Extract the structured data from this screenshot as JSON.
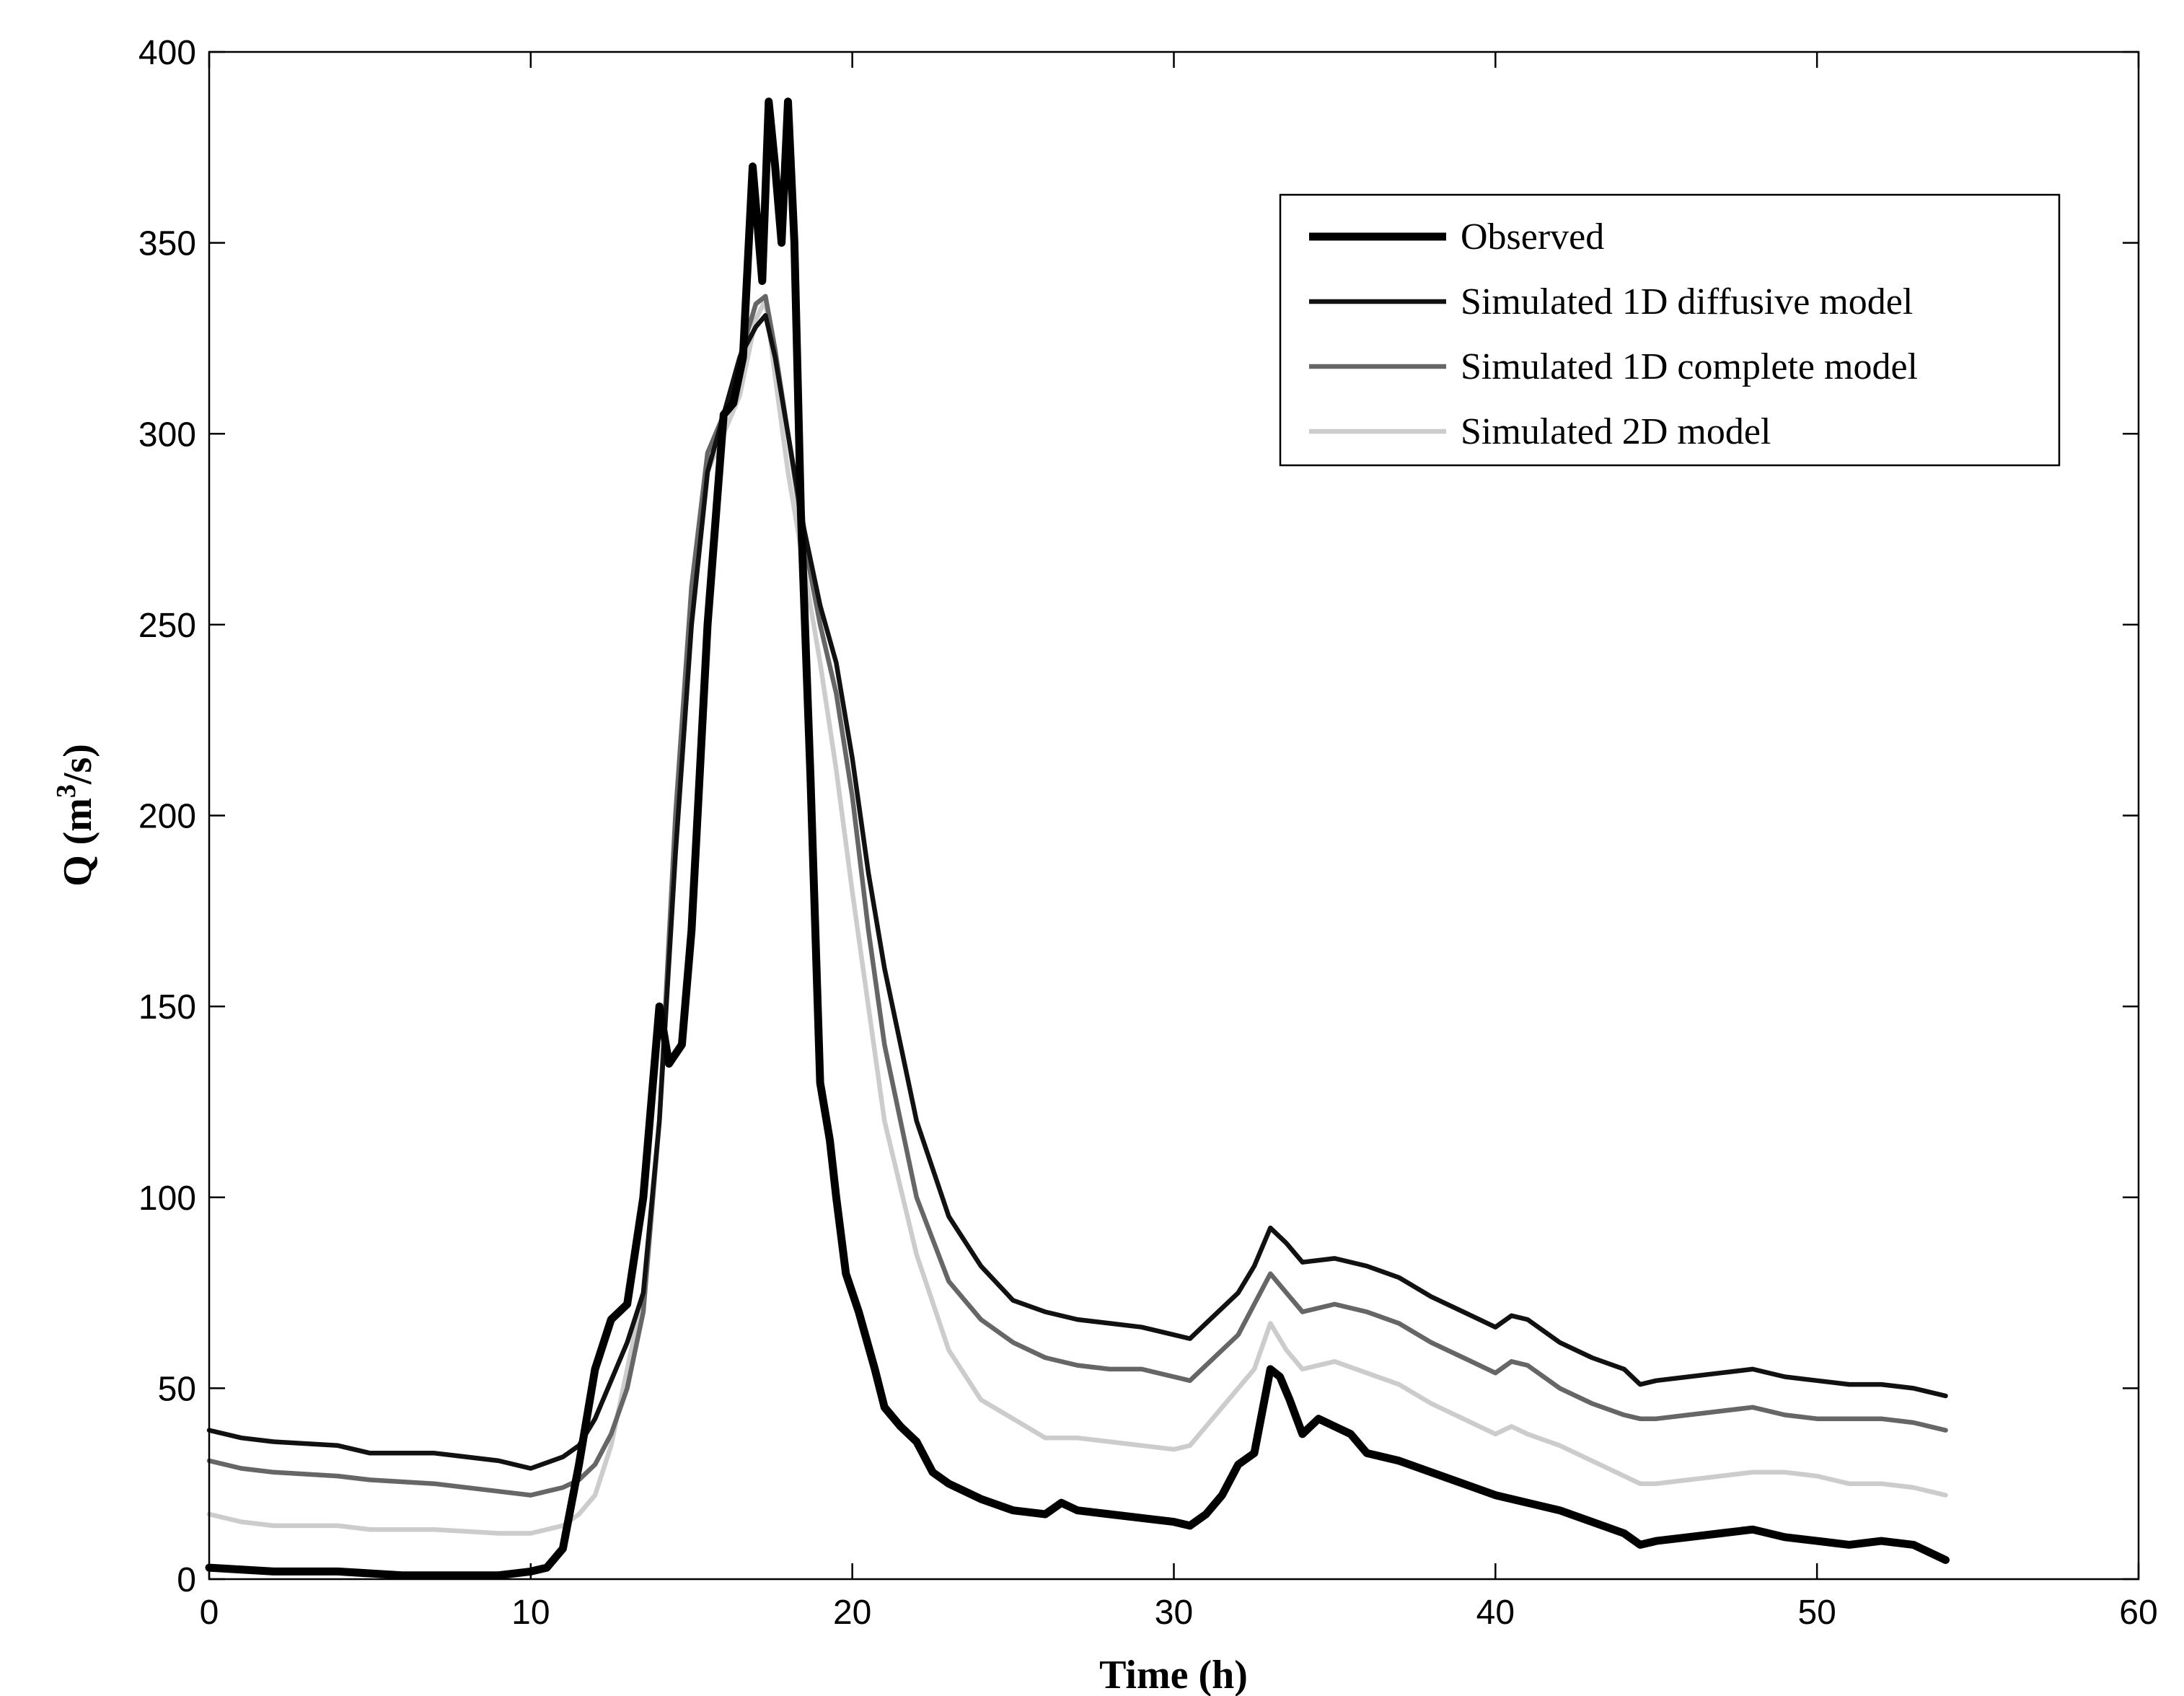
{
  "chart_data": {
    "type": "line",
    "title": "",
    "xlabel": "Time (h)",
    "ylabel": "Q (m3/s)",
    "ylabel_parts": {
      "main": "Q (m",
      "sup": "3",
      "end": "/s)"
    },
    "xlim": [
      0,
      60
    ],
    "ylim": [
      0,
      400
    ],
    "xticks": [
      0,
      10,
      20,
      30,
      40,
      50,
      60
    ],
    "yticks": [
      0,
      50,
      100,
      150,
      200,
      250,
      300,
      350,
      400
    ],
    "grid": false,
    "legend_position": "top-right",
    "series": [
      {
        "name": "Observed",
        "color": "#000000",
        "style": "thick",
        "x": [
          0,
          2,
          4,
          6,
          8,
          9,
          10,
          10.5,
          11,
          11.5,
          12,
          12.5,
          13,
          13.5,
          14,
          14.3,
          14.7,
          15,
          15.5,
          16,
          16.3,
          16.6,
          16.9,
          17.2,
          17.4,
          17.6,
          17.8,
          18,
          18.2,
          18.4,
          18.7,
          19,
          19.3,
          19.5,
          19.8,
          20.2,
          20.7,
          21,
          21.5,
          22,
          22.5,
          23,
          24,
          25,
          26,
          26.5,
          27,
          28,
          29,
          30,
          30.5,
          31,
          31.5,
          32,
          32.5,
          33,
          33.3,
          33.6,
          34,
          34.5,
          35,
          35.5,
          36,
          37,
          38,
          39,
          40,
          41,
          42,
          43,
          44,
          44.5,
          45,
          46,
          47,
          48,
          49,
          50,
          51,
          52,
          53,
          54
        ],
        "y": [
          3,
          2,
          2,
          1,
          1,
          1,
          2,
          3,
          8,
          30,
          55,
          68,
          72,
          100,
          150,
          135,
          140,
          170,
          250,
          305,
          308,
          320,
          370,
          340,
          387,
          370,
          350,
          387,
          350,
          280,
          210,
          130,
          115,
          100,
          80,
          70,
          55,
          45,
          40,
          36,
          28,
          25,
          21,
          18,
          17,
          20,
          18,
          17,
          16,
          15,
          14,
          17,
          22,
          30,
          33,
          55,
          53,
          47,
          38,
          42,
          40,
          38,
          33,
          31,
          28,
          25,
          22,
          20,
          18,
          15,
          12,
          9,
          10,
          11,
          12,
          13,
          11,
          10,
          9,
          10,
          9,
          5
        ]
      },
      {
        "name": "Simulated 1D diffusive model",
        "color": "#111111",
        "style": "medium",
        "x": [
          0,
          1,
          2,
          4,
          5,
          7,
          9,
          10,
          11,
          11.5,
          12,
          12.5,
          13,
          13.5,
          14,
          14.5,
          15,
          15.5,
          16,
          16.5,
          17,
          17.3,
          17.6,
          18,
          18.5,
          19,
          19.5,
          20,
          20.5,
          21,
          22,
          23,
          24,
          25,
          26,
          27,
          28,
          29,
          30,
          30.5,
          31,
          32,
          32.5,
          33,
          33.5,
          34,
          35,
          36,
          37,
          38,
          39,
          40,
          40.5,
          41,
          42,
          43,
          44,
          44.5,
          45,
          46,
          47,
          48,
          49,
          50,
          51,
          52,
          53,
          54
        ],
        "y": [
          39,
          37,
          36,
          35,
          33,
          33,
          31,
          29,
          32,
          35,
          42,
          52,
          62,
          75,
          120,
          190,
          250,
          290,
          305,
          320,
          328,
          331,
          320,
          300,
          275,
          255,
          240,
          215,
          185,
          160,
          120,
          95,
          82,
          73,
          70,
          68,
          67,
          66,
          64,
          63,
          67,
          75,
          82,
          92,
          88,
          83,
          84,
          82,
          79,
          74,
          70,
          66,
          69,
          68,
          62,
          58,
          55,
          51,
          52,
          53,
          54,
          55,
          53,
          52,
          51,
          51,
          50,
          48
        ]
      },
      {
        "name": "Simulated 1D complete model",
        "color": "#666666",
        "style": "medium",
        "x": [
          0,
          1,
          2,
          4,
          5,
          7,
          9,
          10,
          11,
          11.5,
          12,
          12.5,
          13,
          13.5,
          14,
          14.5,
          15,
          15.5,
          16,
          16.5,
          17,
          17.3,
          17.6,
          18,
          18.5,
          19,
          19.5,
          20,
          20.5,
          21,
          22,
          23,
          24,
          25,
          26,
          27,
          28,
          29,
          30,
          30.5,
          31,
          32,
          32.5,
          33,
          33.5,
          34,
          35,
          36,
          37,
          38,
          39,
          40,
          40.5,
          41,
          42,
          43,
          44,
          44.5,
          45,
          46,
          47,
          48,
          49,
          50,
          51,
          52,
          53,
          54
        ],
        "y": [
          31,
          29,
          28,
          27,
          26,
          25,
          23,
          22,
          24,
          26,
          30,
          38,
          50,
          70,
          120,
          200,
          260,
          295,
          305,
          320,
          334,
          336,
          322,
          300,
          272,
          250,
          232,
          205,
          170,
          140,
          100,
          78,
          68,
          62,
          58,
          56,
          55,
          55,
          53,
          52,
          56,
          64,
          72,
          80,
          75,
          70,
          72,
          70,
          67,
          62,
          58,
          54,
          57,
          56,
          50,
          46,
          43,
          42,
          42,
          43,
          44,
          45,
          43,
          42,
          42,
          42,
          41,
          39
        ]
      },
      {
        "name": "Simulated 2D model",
        "color": "#cccccc",
        "style": "medium",
        "x": [
          0,
          1,
          2,
          4,
          5,
          7,
          9,
          10,
          11,
          11.5,
          12,
          12.5,
          13,
          13.5,
          14,
          14.5,
          15,
          15.5,
          16,
          16.5,
          17,
          17.3,
          17.6,
          18,
          18.5,
          19,
          19.5,
          20,
          20.5,
          21,
          22,
          23,
          24,
          25,
          26,
          27,
          28,
          29,
          30,
          30.5,
          31,
          32,
          32.5,
          33,
          33.5,
          34,
          35,
          36,
          37,
          38,
          39,
          40,
          40.5,
          41,
          42,
          43,
          44,
          44.5,
          45,
          46,
          47,
          48,
          49,
          50,
          51,
          52,
          53,
          54
        ],
        "y": [
          17,
          15,
          14,
          14,
          13,
          13,
          12,
          12,
          14,
          17,
          22,
          35,
          55,
          75,
          120,
          190,
          250,
          290,
          300,
          310,
          330,
          335,
          315,
          290,
          265,
          240,
          212,
          180,
          150,
          120,
          85,
          60,
          47,
          42,
          37,
          37,
          36,
          35,
          34,
          35,
          40,
          50,
          55,
          67,
          60,
          55,
          57,
          54,
          51,
          46,
          42,
          38,
          40,
          38,
          35,
          31,
          27,
          25,
          25,
          26,
          27,
          28,
          28,
          27,
          25,
          25,
          24,
          22
        ]
      }
    ]
  }
}
